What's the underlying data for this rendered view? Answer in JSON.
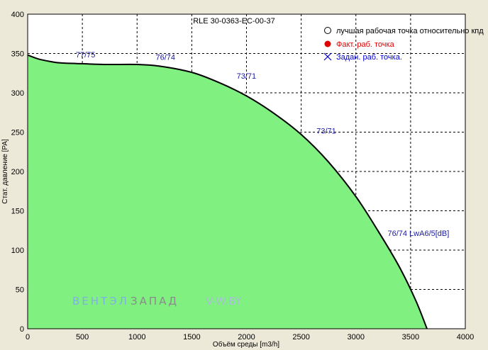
{
  "chart_data": {
    "type": "area",
    "title": "RLE 30-0363-EC-00-37",
    "xlabel": "Объём среды [m3/h]",
    "ylabel": "Стат. давление [PA]",
    "xlim": [
      0,
      4000
    ],
    "ylim": [
      0,
      400
    ],
    "x_ticks": [
      0,
      500,
      1000,
      1500,
      2000,
      2500,
      3000,
      3500,
      4000
    ],
    "y_ticks": [
      0,
      50,
      100,
      150,
      200,
      250,
      300,
      350,
      400
    ],
    "grid": true,
    "colors": {
      "fill": "#80f080",
      "curve": "#000000",
      "background": "#ffffff",
      "frame": "#ece9d8"
    },
    "series": [
      {
        "x": [
          0,
          100,
          200,
          300,
          500,
          700,
          1000,
          1200,
          1500,
          1750,
          2000,
          2250,
          2500,
          2750,
          3000,
          3200,
          3400,
          3550,
          3650
        ],
        "y": [
          348,
          343,
          340,
          338,
          337,
          336,
          336,
          334,
          326,
          313,
          296,
          274,
          247,
          212,
          168,
          125,
          78,
          35,
          0
        ]
      }
    ],
    "annotations": [
      {
        "text": "77/75",
        "x": 440,
        "y": 345
      },
      {
        "text": "76/74",
        "x": 1170,
        "y": 342
      },
      {
        "text": "73/71",
        "x": 1910,
        "y": 318
      },
      {
        "text": "73/71",
        "x": 2640,
        "y": 248
      },
      {
        "text": "76/74 LwA6/5[dB]",
        "x": 3290,
        "y": 118
      }
    ],
    "legend": {
      "placement": "top-right",
      "items": [
        {
          "label": "лучшая рабочая точка относительно кпд",
          "marker": "circle-open",
          "color": "#000000"
        },
        {
          "label": "Факт.  раб. точка",
          "marker": "circle-filled",
          "color": "#e00000"
        },
        {
          "label": "Задан. раб. точка.",
          "marker": "cross",
          "color": "#0000d0"
        }
      ]
    }
  },
  "watermark": {
    "part1": "ВЕНТЭЛ",
    "part2": "ЗАПАД",
    "part3": "V-W.BY",
    "colors": [
      "#7fb1dd",
      "#8a8a8a",
      "#a8bfd8"
    ]
  }
}
